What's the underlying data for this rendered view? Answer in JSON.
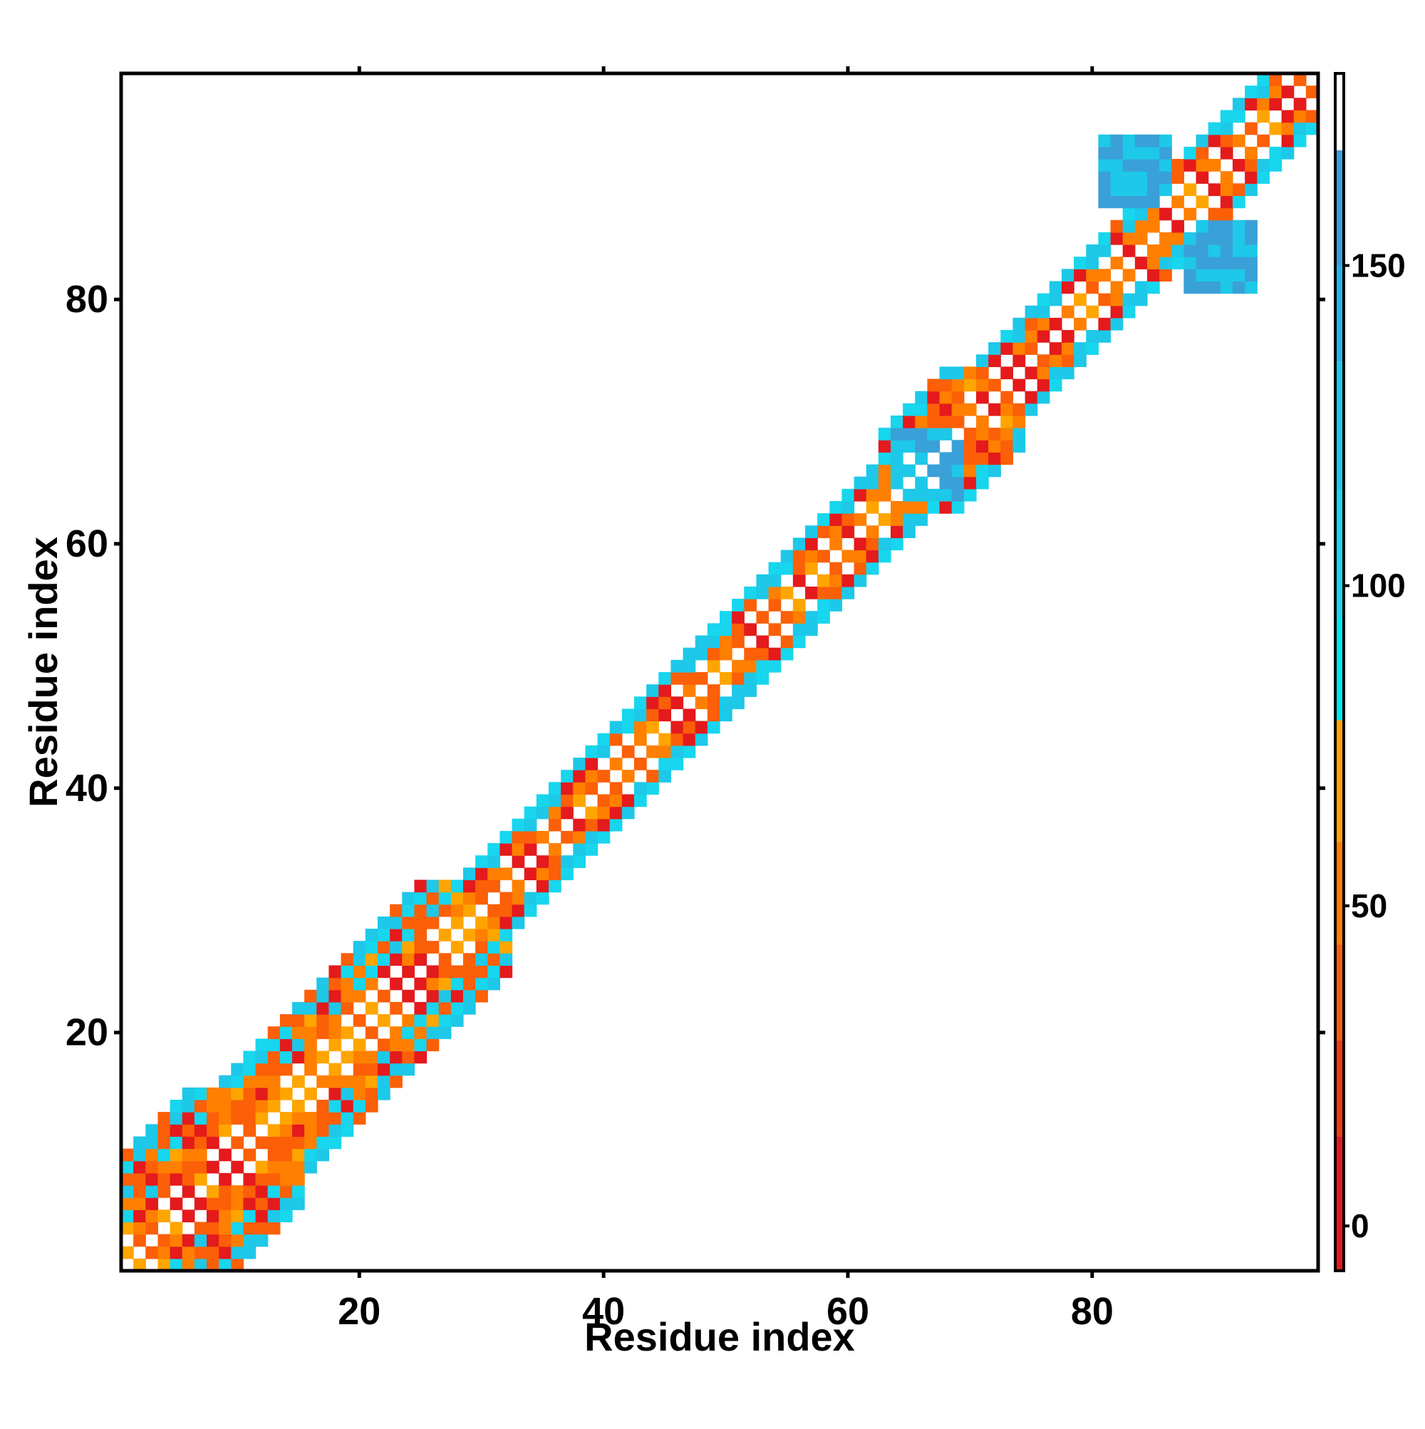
{
  "chart_data": {
    "type": "heatmap",
    "title": "",
    "xlabel": "Residue index",
    "ylabel": "Residue index",
    "xlim": [
      0.5,
      98.5
    ],
    "ylim": [
      0.5,
      98.5
    ],
    "x_ticks": [
      20,
      40,
      60,
      80
    ],
    "y_ticks": [
      20,
      40,
      60,
      80
    ],
    "colorbar": {
      "range": [
        -7,
        180
      ],
      "ticks": [
        0,
        50,
        100,
        150
      ],
      "bands": [
        {
          "from": -7,
          "to": 14,
          "color": "#e41a1c"
        },
        {
          "from": 14,
          "to": 29,
          "color": "#f03a12"
        },
        {
          "from": 29,
          "to": 44,
          "color": "#fb5f08"
        },
        {
          "from": 44,
          "to": 60,
          "color": "#ff7f00"
        },
        {
          "from": 60,
          "to": 79,
          "color": "#ffa500"
        },
        {
          "from": 79,
          "to": 95,
          "color": "#00e5ee"
        },
        {
          "from": 95,
          "to": 115,
          "color": "#17d6ee"
        },
        {
          "from": 115,
          "to": 135,
          "color": "#1ec8e8"
        },
        {
          "from": 135,
          "to": 150,
          "color": "#26b4e2"
        },
        {
          "from": 150,
          "to": 168,
          "color": "#3aa0d8"
        },
        {
          "from": 168,
          "to": 180,
          "color": "#ffffff"
        }
      ]
    },
    "value_scale_note": "values are angle-like pair scores; the matrix is symmetric and mostly filled within a narrow diagonal band",
    "bands_by_residue": [
      {
        "range": [
          1,
          15
        ],
        "half_width": 9
      },
      {
        "range": [
          16,
          32
        ],
        "half_width": 7
      },
      {
        "range": [
          33,
          62
        ],
        "half_width": 4
      },
      {
        "range": [
          63,
          74
        ],
        "half_width": 6
      },
      {
        "range": [
          75,
          84
        ],
        "half_width": 4
      },
      {
        "range": [
          85,
          98
        ],
        "half_width": 4
      }
    ],
    "off_diagonal_patches": [
      {
        "x": [
          81,
          86
        ],
        "y": [
          88,
          93
        ],
        "value": 160
      },
      {
        "x": [
          88,
          93
        ],
        "y": [
          81,
          86
        ],
        "value": 160
      },
      {
        "x": [
          64,
          69
        ],
        "y": [
          64,
          69
        ],
        "value": 150
      }
    ]
  }
}
